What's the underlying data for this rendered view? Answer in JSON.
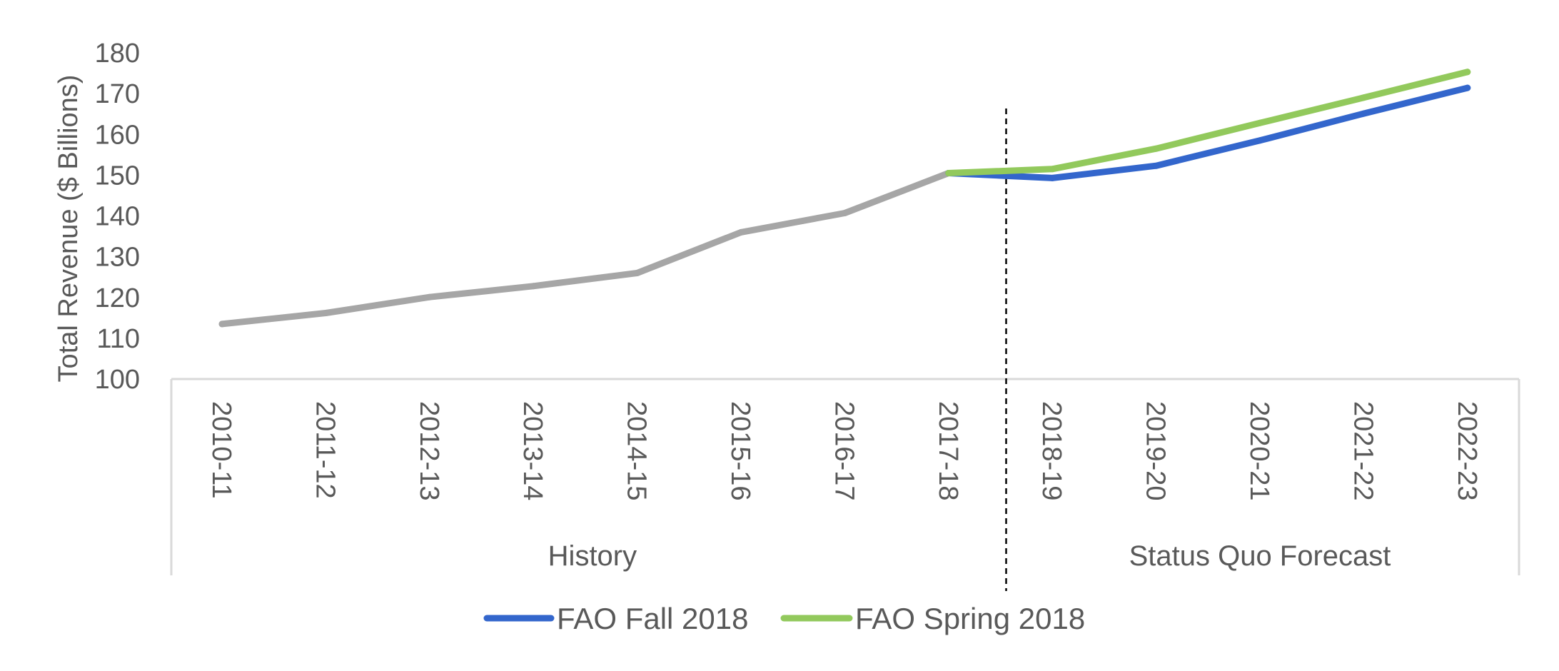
{
  "chart_data": {
    "type": "line",
    "categories": [
      "2010-11",
      "2011-12",
      "2012-13",
      "2013-14",
      "2014-15",
      "2015-16",
      "2016-17",
      "2017-18",
      "2018-19",
      "2019-20",
      "2020-21",
      "2021-22",
      "2022-23"
    ],
    "category_groups": [
      {
        "label": "History",
        "from": "2010-11",
        "to": "2017-18"
      },
      {
        "label": "Status Quo Forecast",
        "from": "2018-19",
        "to": "2022-23"
      }
    ],
    "ylabel": "Total Revenue ($ Billions)",
    "ylim": [
      100,
      180
    ],
    "yticks": [
      100,
      110,
      120,
      130,
      140,
      150,
      160,
      170,
      180
    ],
    "series": [
      {
        "key": "history",
        "color": "#a6a6a6",
        "values": [
          113.5,
          116.2,
          120.1,
          122.8,
          126.0,
          136.0,
          140.7,
          150.5,
          null,
          null,
          null,
          null,
          null
        ]
      },
      {
        "key": "fall",
        "name": "FAO Fall 2018",
        "color": "#3366cc",
        "values": [
          null,
          null,
          null,
          null,
          null,
          null,
          null,
          150.5,
          149.3,
          152.3,
          158.5,
          165.1,
          171.4
        ]
      },
      {
        "key": "spring",
        "name": "FAO Spring 2018",
        "color": "#92c95c",
        "values": [
          null,
          null,
          null,
          null,
          null,
          null,
          null,
          150.5,
          151.5,
          156.5,
          162.8,
          169.0,
          175.3
        ]
      }
    ],
    "legend": [
      {
        "label": "FAO Fall 2018",
        "color": "#3366cc"
      },
      {
        "label": "FAO Spring 2018",
        "color": "#92c95c"
      }
    ],
    "legend_position": "bottom",
    "divider": "dashed line between 2017-18 and 2018-19",
    "grid": false
  }
}
